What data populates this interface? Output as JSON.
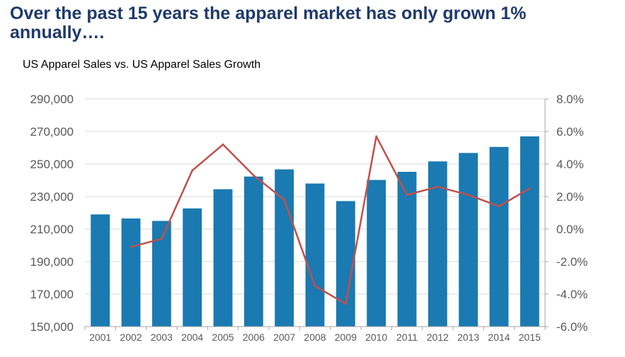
{
  "headline": "Over the past 15 years the apparel market has only grown 1% annually….",
  "chart_data": {
    "type": "bar",
    "title": "US Apparel Sales vs. US Apparel Sales Growth",
    "categories": [
      "2001",
      "2002",
      "2003",
      "2004",
      "2005",
      "2006",
      "2007",
      "2008",
      "2009",
      "2010",
      "2011",
      "2012",
      "2013",
      "2014",
      "2015"
    ],
    "series": [
      {
        "name": "",
        "type": "bar",
        "axis": "left",
        "color": "#1a7ab1",
        "values": [
          219000,
          216500,
          215000,
          222700,
          234500,
          242300,
          246700,
          238000,
          227200,
          240200,
          245200,
          251600,
          256800,
          260500,
          267000
        ]
      },
      {
        "name": "",
        "type": "line",
        "axis": "right",
        "color": "#c0504d",
        "values": [
          null,
          -1.1,
          -0.6,
          3.6,
          5.2,
          3.3,
          1.8,
          -3.5,
          -4.6,
          5.7,
          2.1,
          2.6,
          2.1,
          1.4,
          2.5
        ]
      }
    ],
    "y_left": {
      "min": 150000,
      "max": 290000,
      "ticks": [
        150000,
        170000,
        190000,
        210000,
        230000,
        250000,
        270000,
        290000
      ],
      "tick_labels": [
        "150,000",
        "170,000",
        "190,000",
        "210,000",
        "230,000",
        "250,000",
        "270,000",
        "290,000"
      ]
    },
    "y_right": {
      "min": -6,
      "max": 8,
      "ticks": [
        -6,
        -4,
        -2,
        0,
        2,
        4,
        6,
        8
      ],
      "tick_labels": [
        "-6.0%",
        "-4.0%",
        "-2.0%",
        "0.0%",
        "2.0%",
        "4.0%",
        "6.0%",
        "8.0%"
      ]
    },
    "grid": true,
    "legend": "none"
  }
}
